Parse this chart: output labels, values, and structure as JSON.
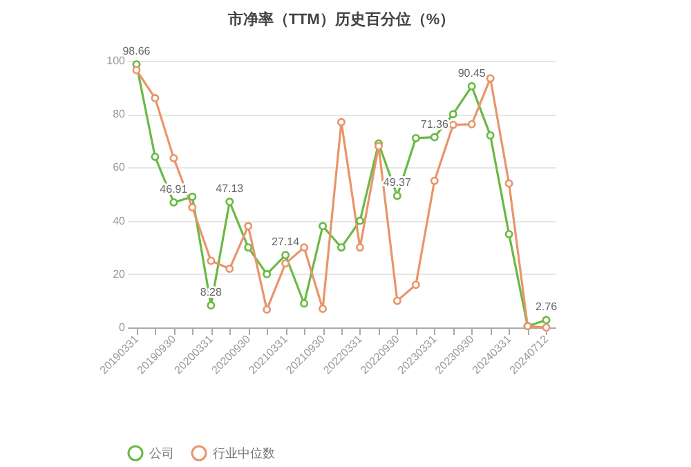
{
  "chart_data": {
    "type": "line",
    "title": "市净率（TTM）历史百分位（%）",
    "categories": [
      "20190331",
      null,
      "20190930",
      null,
      "20200331",
      null,
      "20200930",
      null,
      "20210331",
      null,
      "20210930",
      null,
      "20220331",
      null,
      "20220930",
      null,
      "20230331",
      null,
      "20230930",
      null,
      "20240331",
      null,
      "20240712"
    ],
    "series": [
      {
        "name": "公司",
        "color": "#6ab945",
        "values": [
          98.66,
          64,
          46.91,
          49,
          8.28,
          47.13,
          30,
          20,
          27.14,
          9,
          38,
          30,
          40,
          69,
          49.37,
          71,
          71.36,
          80,
          90.45,
          72,
          35,
          0.5,
          2.76
        ],
        "value_labels": [
          "98.66",
          null,
          "46.91",
          null,
          "8.28",
          "47.13",
          null,
          null,
          "27.14",
          null,
          null,
          null,
          null,
          null,
          "49.37",
          null,
          "71.36",
          null,
          "90.45",
          null,
          null,
          null,
          "2.76"
        ]
      },
      {
        "name": "行业中位数",
        "color": "#e8956b",
        "values": [
          96.5,
          86,
          63.5,
          45,
          25,
          22,
          38,
          6.7,
          24,
          30,
          7,
          77,
          30,
          68,
          10,
          16,
          55,
          76,
          76.2,
          93.4,
          54,
          0.5,
          0
        ]
      }
    ],
    "ylim": [
      0,
      100
    ],
    "yticks": [
      0,
      20,
      40,
      60,
      80,
      100
    ],
    "grid": "y",
    "legend": "bottom",
    "marker": "circle"
  }
}
